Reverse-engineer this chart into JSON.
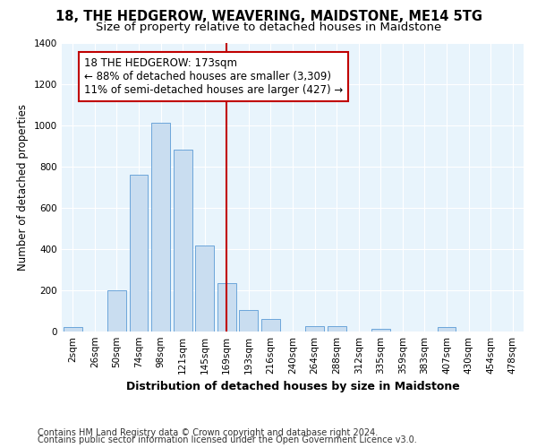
{
  "title": "18, THE HEDGEROW, WEAVERING, MAIDSTONE, ME14 5TG",
  "subtitle": "Size of property relative to detached houses in Maidstone",
  "xlabel": "Distribution of detached houses by size in Maidstone",
  "ylabel": "Number of detached properties",
  "categories": [
    "2sqm",
    "26sqm",
    "50sqm",
    "74sqm",
    "98sqm",
    "121sqm",
    "145sqm",
    "169sqm",
    "193sqm",
    "216sqm",
    "240sqm",
    "264sqm",
    "288sqm",
    "312sqm",
    "335sqm",
    "359sqm",
    "383sqm",
    "407sqm",
    "430sqm",
    "454sqm",
    "478sqm"
  ],
  "values": [
    20,
    0,
    200,
    760,
    1010,
    880,
    415,
    235,
    105,
    60,
    0,
    25,
    25,
    0,
    15,
    0,
    0,
    20,
    0,
    0,
    0
  ],
  "bar_color": "#c9ddf0",
  "bar_edge_color": "#5b9bd5",
  "vline_x": 7,
  "vline_color": "#c00000",
  "annotation_line1": "18 THE HEDGEROW: 173sqm",
  "annotation_line2": "← 88% of detached houses are smaller (3,309)",
  "annotation_line3": "11% of semi-detached houses are larger (427) →",
  "annotation_box_color": "white",
  "annotation_box_edge": "#c00000",
  "ylim": [
    0,
    1400
  ],
  "yticks": [
    0,
    200,
    400,
    600,
    800,
    1000,
    1200,
    1400
  ],
  "footer1": "Contains HM Land Registry data © Crown copyright and database right 2024.",
  "footer2": "Contains public sector information licensed under the Open Government Licence v3.0.",
  "bg_color": "#e8f4fc",
  "fig_bg_color": "#ffffff",
  "title_fontsize": 10.5,
  "subtitle_fontsize": 9.5,
  "xlabel_fontsize": 9,
  "ylabel_fontsize": 8.5,
  "tick_fontsize": 7.5,
  "annotation_fontsize": 8.5,
  "footer_fontsize": 7
}
